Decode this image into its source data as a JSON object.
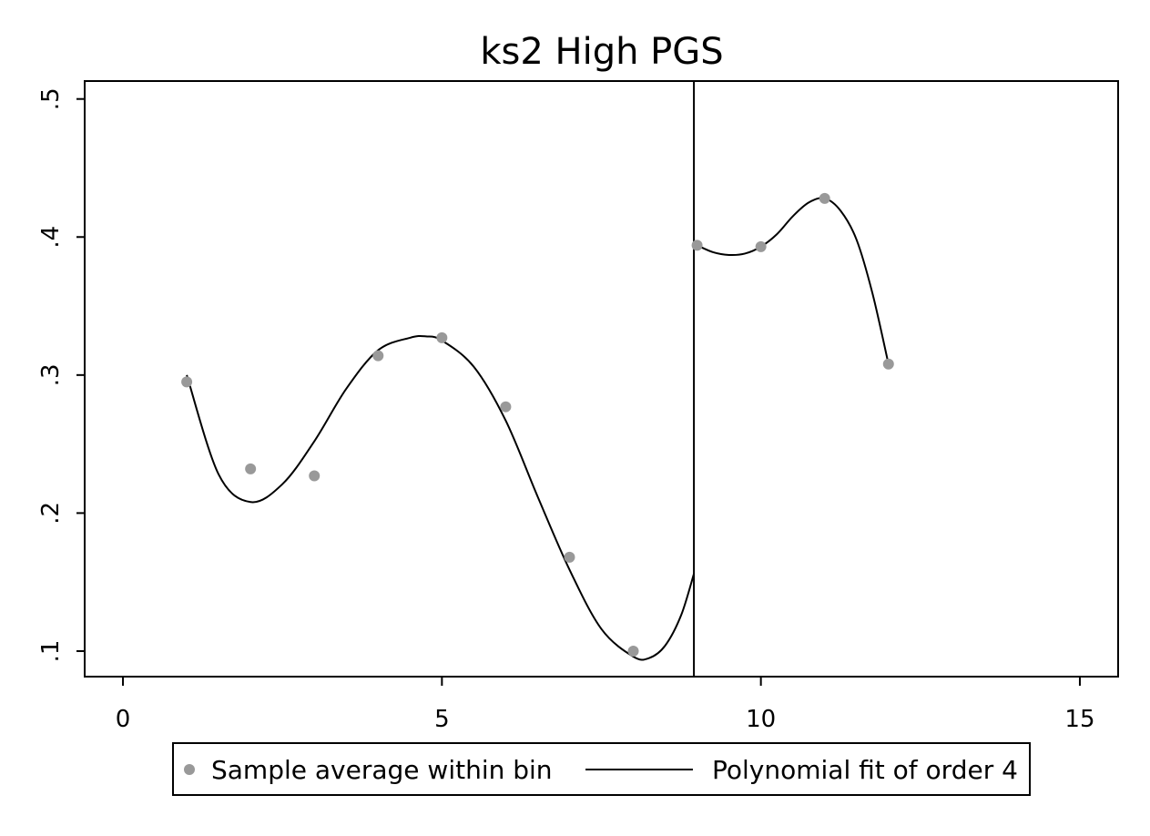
{
  "colors": {
    "points": "#999999",
    "line": "#000000",
    "background": "#ffffff"
  },
  "chart_data": {
    "type": "scatter",
    "title": "ks2 High PGS",
    "xlabel": "",
    "ylabel": "",
    "xlim": [
      -0.6,
      15.6
    ],
    "ylim": [
      0.0815,
      0.513
    ],
    "xticks": [
      {
        "value": 0,
        "label": "0"
      },
      {
        "value": 5,
        "label": "5"
      },
      {
        "value": 10,
        "label": "10"
      },
      {
        "value": 15,
        "label": "15"
      }
    ],
    "yticks": [
      {
        "value": 0.1,
        "label": ".1"
      },
      {
        "value": 0.2,
        "label": ".2"
      },
      {
        "value": 0.3,
        "label": ".3"
      },
      {
        "value": 0.4,
        "label": ".4"
      },
      {
        "value": 0.5,
        "label": ".5"
      }
    ],
    "cutoff_x": 8.95,
    "series": [
      {
        "name": "Sample average within bin",
        "kind": "scatter",
        "x": [
          1,
          2,
          3,
          4,
          5,
          6,
          7,
          8,
          9,
          10,
          11,
          12
        ],
        "y": [
          0.295,
          0.232,
          0.227,
          0.314,
          0.327,
          0.277,
          0.168,
          0.1,
          0.394,
          0.393,
          0.428,
          0.308
        ]
      },
      {
        "name": "Polynomial fit of order 4",
        "kind": "line",
        "segments": [
          {
            "x": [
              1.0,
              1.5,
              2.0,
              2.5,
              3.0,
              3.5,
              4.0,
              4.5,
              4.75,
              5.0,
              5.5,
              6.0,
              6.5,
              7.0,
              7.5,
              8.0,
              8.25,
              8.5,
              8.75,
              8.95
            ],
            "y": [
              0.3,
              0.228,
              0.208,
              0.221,
              0.252,
              0.29,
              0.318,
              0.327,
              0.328,
              0.325,
              0.306,
              0.267,
              0.212,
              0.159,
              0.116,
              0.096,
              0.095,
              0.104,
              0.126,
              0.156
            ]
          },
          {
            "x": [
              9.0,
              9.25,
              9.5,
              9.75,
              10.0,
              10.25,
              10.5,
              10.75,
              11.0,
              11.25,
              11.5,
              11.75,
              12.0
            ],
            "y": [
              0.394,
              0.389,
              0.387,
              0.388,
              0.393,
              0.402,
              0.415,
              0.425,
              0.428,
              0.419,
              0.398,
              0.359,
              0.308
            ]
          }
        ]
      }
    ]
  }
}
